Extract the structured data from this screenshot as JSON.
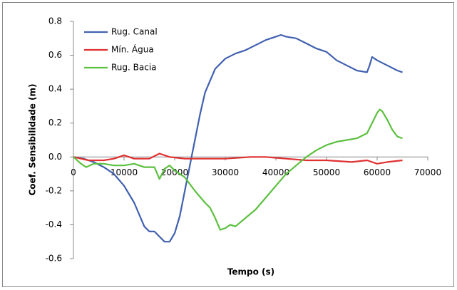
{
  "chart_data": {
    "type": "line",
    "x_label": "Tempo (s)",
    "y_label": "Coef. Sensibilidade (m)",
    "xlim": [
      0,
      70000
    ],
    "xticks": [
      0,
      10000,
      20000,
      30000,
      40000,
      50000,
      60000,
      70000
    ],
    "ylim": [
      -0.6,
      0.8
    ],
    "yticks": [
      -0.6,
      -0.4,
      -0.2,
      {
        "value": 0,
        "label": "0.0"
      },
      0.2,
      0.4,
      0.6,
      0.8
    ],
    "grid": false,
    "legend": "top-left",
    "series": [
      {
        "name": "Rug. Canal",
        "color": "#4060b0",
        "x": [
          0,
          2000,
          4000,
          6000,
          8000,
          10000,
          12000,
          14000,
          15000,
          16000,
          17000,
          18000,
          19000,
          20000,
          21000,
          22000,
          23000,
          24000,
          25000,
          26000,
          28000,
          30000,
          32000,
          34000,
          36000,
          38000,
          40000,
          41000,
          42000,
          44000,
          46000,
          48000,
          50000,
          52000,
          54000,
          56000,
          58000,
          58500,
          59000,
          60000,
          62000,
          64000,
          65000
        ],
        "values": [
          0,
          -0.01,
          -0.03,
          -0.06,
          -0.1,
          -0.17,
          -0.27,
          -0.41,
          -0.44,
          -0.44,
          -0.47,
          -0.5,
          -0.5,
          -0.45,
          -0.35,
          -0.2,
          -0.05,
          0.1,
          0.25,
          0.38,
          0.52,
          0.58,
          0.61,
          0.63,
          0.66,
          0.69,
          0.71,
          0.72,
          0.71,
          0.7,
          0.67,
          0.64,
          0.62,
          0.57,
          0.54,
          0.51,
          0.5,
          0.54,
          0.59,
          0.57,
          0.54,
          0.51,
          0.5
        ]
      },
      {
        "name": "Mín. Água",
        "color": "#e03030",
        "x": [
          0,
          3000,
          6000,
          8000,
          10000,
          12000,
          15000,
          17000,
          19000,
          22000,
          25000,
          30000,
          35000,
          38000,
          42000,
          46000,
          50000,
          55000,
          58000,
          60000,
          62000,
          65000
        ],
        "values": [
          0,
          -0.02,
          -0.02,
          -0.01,
          0.01,
          -0.01,
          -0.01,
          0.02,
          0,
          -0.01,
          -0.01,
          -0.01,
          0,
          0,
          -0.01,
          -0.02,
          -0.02,
          -0.03,
          -0.02,
          -0.04,
          -0.03,
          -0.02
        ]
      },
      {
        "name": "Rug. Bacia",
        "color": "#5cc040",
        "x": [
          0,
          1500,
          2500,
          4000,
          6000,
          8000,
          10000,
          12000,
          14000,
          16000,
          17000,
          18000,
          19000,
          20000,
          22000,
          24000,
          26000,
          27000,
          28000,
          29000,
          30000,
          31000,
          32000,
          34000,
          36000,
          38000,
          40000,
          42000,
          44000,
          46000,
          48000,
          50000,
          52000,
          54000,
          56000,
          58000,
          59000,
          60000,
          60500,
          61000,
          62000,
          63000,
          64000,
          65000
        ],
        "values": [
          0,
          -0.04,
          -0.06,
          -0.04,
          -0.04,
          -0.05,
          -0.05,
          -0.04,
          -0.06,
          -0.06,
          -0.13,
          -0.07,
          -0.05,
          -0.08,
          -0.12,
          -0.2,
          -0.27,
          -0.3,
          -0.36,
          -0.43,
          -0.42,
          -0.4,
          -0.41,
          -0.36,
          -0.31,
          -0.24,
          -0.17,
          -0.1,
          -0.05,
          0,
          0.04,
          0.07,
          0.09,
          0.1,
          0.11,
          0.14,
          0.2,
          0.26,
          0.28,
          0.27,
          0.22,
          0.16,
          0.12,
          0.11
        ]
      }
    ]
  }
}
